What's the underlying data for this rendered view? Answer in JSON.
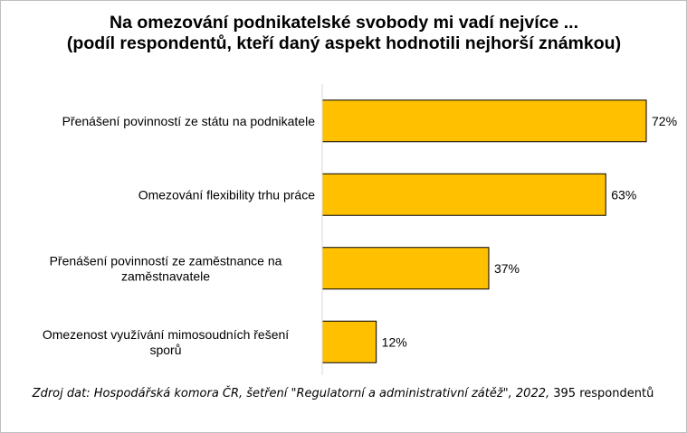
{
  "chart_data": {
    "type": "bar",
    "orientation": "horizontal",
    "title": "Na omezování podnikatelské svobody mi vadí nejvíce ...\n(podíl respondentů, kteří daný aspekt hodnotili nejhorší známkou)",
    "categories": [
      "Přenášení povinností ze státu na podnikatele",
      "Omezování flexibility trhu práce",
      "Přenášení povinností ze zaměstnance na zaměstnavatele",
      "Omezenost využívání mimosoudních řešení sporů"
    ],
    "category_lines": [
      [
        "Přenášení povinností ze státu na podnikatele"
      ],
      [
        "Omezování flexibility trhu práce"
      ],
      [
        "Přenášení povinností ze zaměstnance na",
        "zaměstnavatele"
      ],
      [
        "Omezenost využívání mimosoudních řešení",
        "sporů"
      ]
    ],
    "values": [
      72,
      63,
      37,
      12
    ],
    "value_labels": [
      "72%",
      "63%",
      "37%",
      "12%"
    ],
    "unit": "%",
    "xlim": [
      0,
      72
    ],
    "bar_color": "#FFC000",
    "bar_edge_color": "#000000",
    "grid": false,
    "legend": "none"
  },
  "source": {
    "main": "Zdroj dat: Hospodářská komora ČR, šetření \"Regulatorní a administrativní zátěž\", 2022,",
    "tail": "395 respondentů"
  }
}
